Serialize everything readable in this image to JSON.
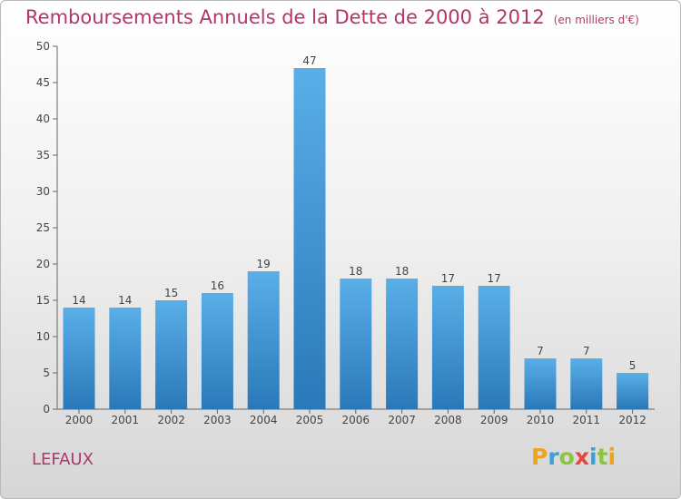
{
  "title": "Remboursements Annuels de la Dette de 2000 à 2012",
  "subtitle": "(en milliers d'€)",
  "commune": "LEFAUX",
  "logo": {
    "text": "Proxiti",
    "letters": [
      "P",
      "r",
      "o",
      "x",
      "i",
      "t",
      "i"
    ],
    "colors": [
      "#f0a31c",
      "#3aa0d8",
      "#8cc63f",
      "#e8473f",
      "#3aa0d8",
      "#8cc63f",
      "#f0a31c"
    ]
  },
  "colors": {
    "accent": "#b3356a",
    "bar_top": "#5aafe8",
    "bar_bottom": "#2a78b8"
  },
  "chart_data": {
    "type": "bar",
    "title": "Remboursements Annuels de la Dette de 2000 à 2012",
    "subtitle": "(en milliers d'€)",
    "categories": [
      "2000",
      "2001",
      "2002",
      "2003",
      "2004",
      "2005",
      "2006",
      "2007",
      "2008",
      "2009",
      "2010",
      "2011",
      "2012"
    ],
    "values": [
      14,
      14,
      15,
      16,
      19,
      47,
      18,
      18,
      17,
      17,
      7,
      7,
      5
    ],
    "ylim": [
      0,
      50
    ],
    "yticks": [
      0,
      5,
      10,
      15,
      20,
      25,
      30,
      35,
      40,
      45,
      50
    ],
    "grid": false,
    "data_labels": true
  }
}
